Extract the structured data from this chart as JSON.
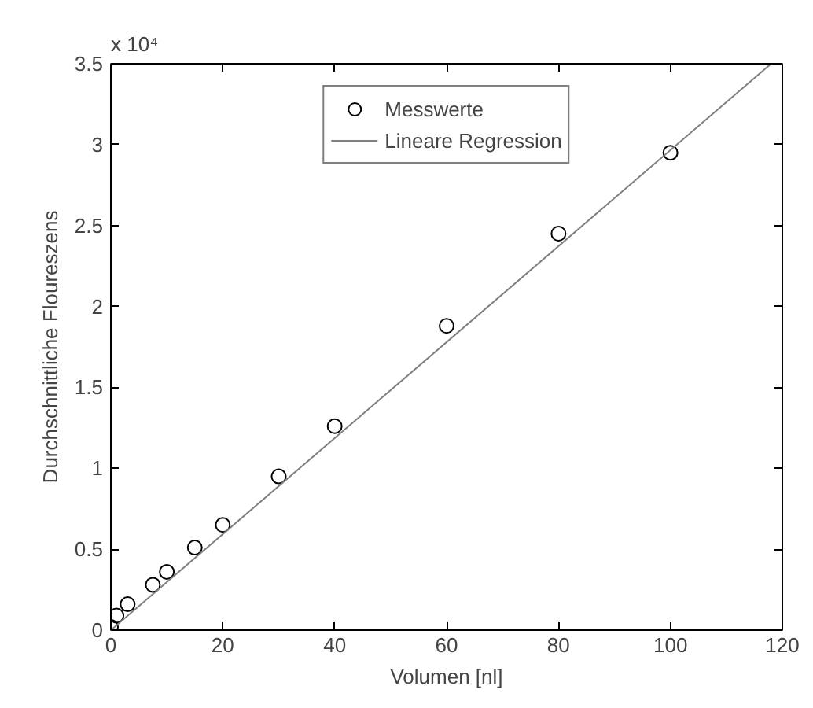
{
  "chart_data": {
    "type": "scatter",
    "xlabel": "Volumen [nl]",
    "ylabel": "Durchschnittliche Floureszens",
    "annotations": [
      "x 10⁴"
    ],
    "series": [
      {
        "name": "Messwerte",
        "type": "scatter",
        "color": "#000000",
        "marker": "circle",
        "x": [
          0,
          1,
          3,
          7.5,
          10,
          15,
          20,
          30,
          40,
          60,
          80,
          100
        ],
        "values": [
          0.02,
          0.09,
          0.16,
          0.28,
          0.36,
          0.51,
          0.65,
          0.95,
          1.26,
          1.88,
          2.45,
          2.95
        ]
      },
      {
        "name": "Lineare Regression",
        "type": "line",
        "color": "#808080",
        "line_style": "solid",
        "x": [
          0,
          118
        ],
        "values": [
          0,
          3.5
        ]
      }
    ],
    "xlim": [
      0,
      120
    ],
    "xticks": [
      0,
      20,
      40,
      60,
      80,
      100,
      120
    ],
    "ylim": [
      0,
      3.5
    ],
    "yticks": [
      0,
      0.5,
      1,
      1.5,
      2,
      2.5,
      3,
      3.5
    ],
    "grid": false,
    "legend": "top"
  }
}
